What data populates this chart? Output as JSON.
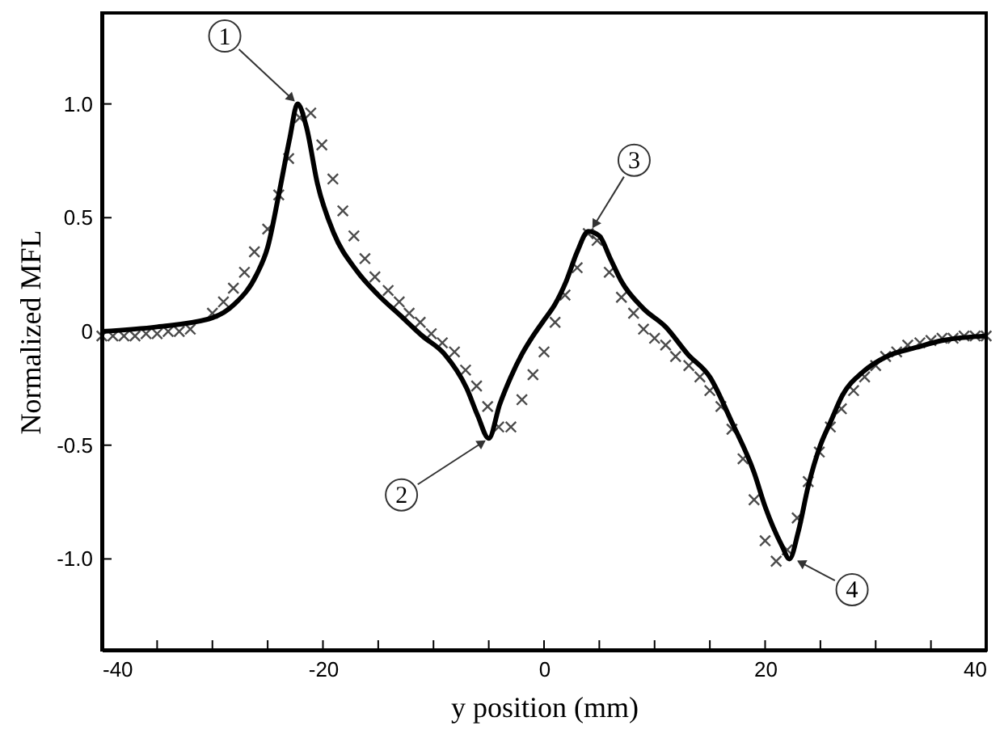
{
  "chart_data": {
    "type": "line",
    "xlabel": "y position (mm)",
    "ylabel": "Normalized MFL",
    "xlim": [
      -40,
      40
    ],
    "ylim": [
      -1.4,
      1.4
    ],
    "xticks": [
      -40,
      {
        "value": -35,
        "label": null
      },
      {
        "value": -30,
        "label": null
      },
      {
        "value": -25,
        "label": null
      },
      -20,
      {
        "value": -15,
        "label": null
      },
      {
        "value": -10,
        "label": null
      },
      {
        "value": -5,
        "label": null
      },
      0,
      {
        "value": 5,
        "label": null
      },
      {
        "value": 10,
        "label": null
      },
      {
        "value": 15,
        "label": null
      },
      20,
      {
        "value": 25,
        "label": null
      },
      {
        "value": 30,
        "label": null
      },
      {
        "value": 35,
        "label": null
      },
      40
    ],
    "yticks": [
      {
        "value": -1,
        "label": "-1.0"
      },
      -0.5,
      0,
      0.5,
      {
        "value": 1,
        "label": "1.0"
      }
    ],
    "grid": false,
    "series": [
      {
        "color": "#000000",
        "line_style": "solid",
        "marker": "none",
        "x": [
          -40,
          -35,
          -30,
          -28,
          -26,
          -25,
          -24,
          -23,
          -22.3,
          -21.5,
          -20.5,
          -19,
          -17,
          -15,
          -13,
          -11,
          -9,
          -7,
          -6,
          -5,
          -4,
          -3,
          -2,
          -1,
          0,
          1,
          2,
          3,
          4,
          5,
          6,
          7,
          9,
          11,
          13,
          15,
          17,
          19,
          20,
          21.5,
          22.2,
          23,
          23.9,
          25,
          25.9,
          27,
          28.8,
          31,
          33.7,
          36,
          40
        ],
        "values": [
          0.0,
          0.02,
          0.06,
          0.12,
          0.25,
          0.37,
          0.6,
          0.85,
          1.0,
          0.9,
          0.65,
          0.43,
          0.27,
          0.16,
          0.07,
          -0.02,
          -0.1,
          -0.25,
          -0.37,
          -0.47,
          -0.32,
          -0.2,
          -0.1,
          -0.02,
          0.05,
          0.12,
          0.22,
          0.35,
          0.44,
          0.42,
          0.32,
          0.22,
          0.1,
          0.02,
          -0.1,
          -0.2,
          -0.4,
          -0.62,
          -0.77,
          -0.94,
          -1.0,
          -0.88,
          -0.68,
          -0.5,
          -0.4,
          -0.28,
          -0.18,
          -0.11,
          -0.07,
          -0.04,
          -0.02
        ]
      },
      {
        "type": "scatter",
        "color": "#000000",
        "marker": "cross",
        "x": [
          -40,
          -39,
          -38,
          -37,
          -36,
          -35,
          -34,
          -33,
          -32,
          -30,
          -29,
          -28.1,
          -27.1,
          -26.2,
          -25,
          -24,
          -23.1,
          -22.1,
          -21.1,
          -20.1,
          -19.1,
          -18.2,
          -17.2,
          -16.2,
          -15.3,
          -14.1,
          -13.1,
          -12.2,
          -11.2,
          -10.2,
          -9.2,
          -8.1,
          -7.1,
          -6.1,
          -5.1,
          -4.1,
          -3,
          -2,
          -1,
          0,
          1,
          1.9,
          3,
          4,
          4.8,
          5.9,
          7,
          8.1,
          9,
          10,
          11,
          11.9,
          13.1,
          14.1,
          15,
          16,
          17,
          18,
          19,
          20,
          21,
          22,
          22.9,
          23.9,
          24.9,
          25.9,
          26.9,
          28,
          29,
          30,
          30.9,
          31.9,
          32.9,
          34,
          35,
          36,
          37,
          38,
          39,
          40
        ],
        "values": [
          -0.02,
          -0.02,
          -0.02,
          -0.02,
          -0.01,
          -0.01,
          0.0,
          0.0,
          0.01,
          0.08,
          0.13,
          0.19,
          0.26,
          0.35,
          0.45,
          0.6,
          0.76,
          0.94,
          0.96,
          0.82,
          0.67,
          0.53,
          0.42,
          0.32,
          0.24,
          0.18,
          0.13,
          0.08,
          0.04,
          -0.01,
          -0.05,
          -0.09,
          -0.17,
          -0.24,
          -0.33,
          -0.42,
          -0.42,
          -0.3,
          -0.19,
          -0.09,
          0.04,
          0.16,
          0.28,
          0.43,
          0.4,
          0.26,
          0.15,
          0.08,
          0.01,
          -0.03,
          -0.06,
          -0.11,
          -0.15,
          -0.2,
          -0.26,
          -0.33,
          -0.43,
          -0.56,
          -0.74,
          -0.92,
          -1.01,
          -0.96,
          -0.82,
          -0.66,
          -0.53,
          -0.42,
          -0.34,
          -0.26,
          -0.2,
          -0.15,
          -0.11,
          -0.09,
          -0.06,
          -0.05,
          -0.04,
          -0.03,
          -0.03,
          -0.02,
          -0.02,
          -0.02
        ]
      }
    ],
    "annotations": [
      {
        "text": "1",
        "x": -22.3,
        "y": 1.0
      },
      {
        "text": "2",
        "x": -5,
        "y": -0.47
      },
      {
        "text": "3",
        "x": 4.2,
        "y": 0.44
      },
      {
        "text": "4",
        "x": 22.6,
        "y": -1.0
      }
    ]
  }
}
